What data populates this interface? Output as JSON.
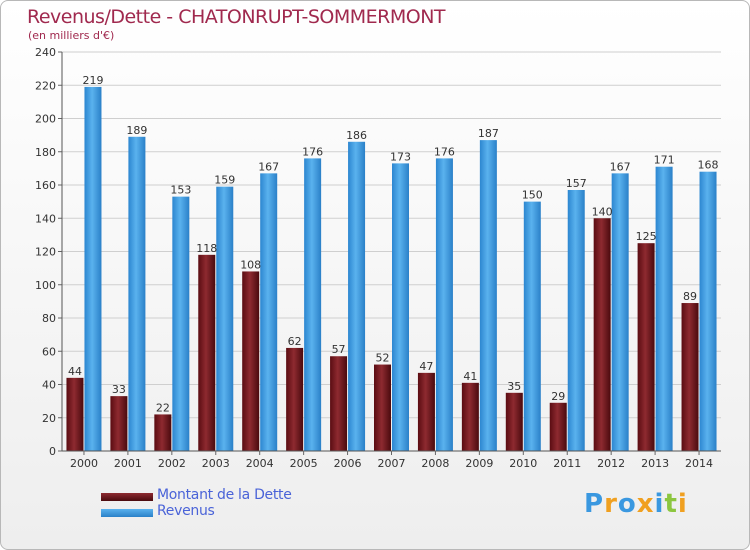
{
  "title": "Revenus/Dette - CHATONRUPT-SOMMERMONT",
  "subtitle": "(en milliers d'€)",
  "legend": {
    "debt_label": "Montant de la Dette",
    "revenue_label": "Revenus"
  },
  "logo": {
    "letters": [
      "P",
      "r",
      "o",
      "x",
      "i",
      "t",
      "i"
    ]
  },
  "colors": {
    "title": "#a0294e",
    "debt": "#7a1a20",
    "revenue": "#3a98e0",
    "legend_text": "#4a63d8"
  },
  "chart_data": {
    "type": "bar",
    "categories": [
      "2000",
      "2001",
      "2002",
      "2003",
      "2004",
      "2005",
      "2006",
      "2007",
      "2008",
      "2009",
      "2010",
      "2011",
      "2012",
      "2013",
      "2014"
    ],
    "series": [
      {
        "name": "Montant de la Dette",
        "values": [
          44,
          33,
          22,
          118,
          108,
          62,
          57,
          52,
          47,
          41,
          35,
          29,
          140,
          125,
          89
        ]
      },
      {
        "name": "Revenus",
        "values": [
          219,
          189,
          153,
          159,
          167,
          176,
          186,
          173,
          176,
          187,
          150,
          157,
          167,
          171,
          168
        ]
      }
    ],
    "yticks": [
      0,
      20,
      40,
      60,
      80,
      100,
      120,
      140,
      160,
      180,
      200,
      220,
      240
    ],
    "ylim": [
      0,
      240
    ],
    "grid": true
  }
}
